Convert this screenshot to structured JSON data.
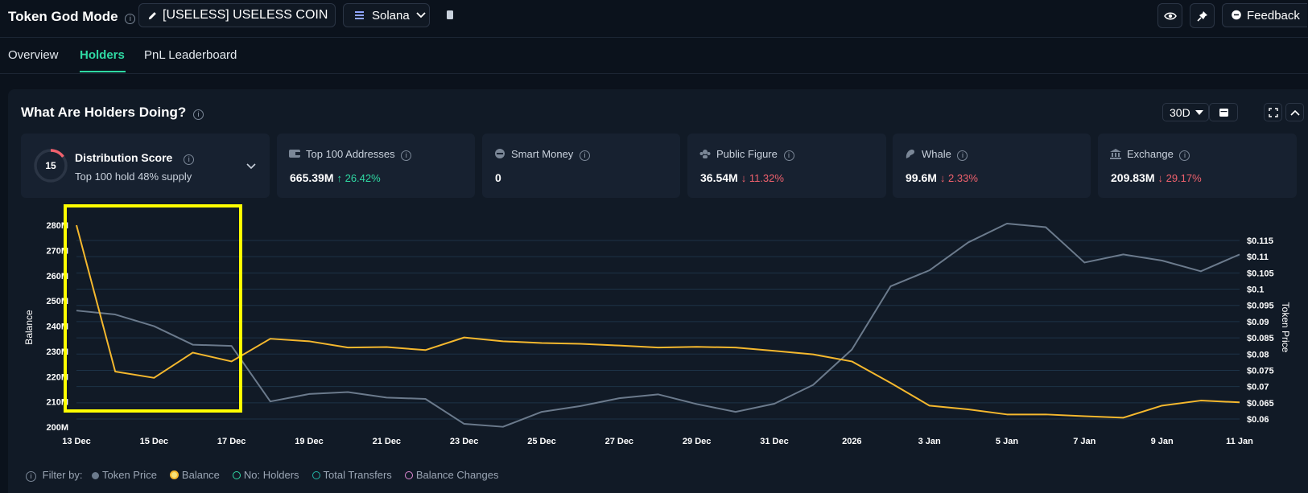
{
  "header": {
    "title": "Token God Mode",
    "token_name": "[USELESS] USELESS COIN",
    "chain": "Solana",
    "feedback_label": "Feedback"
  },
  "tabs": [
    {
      "label": "Overview"
    },
    {
      "label": "Holders"
    },
    {
      "label": "PnL Leaderboard"
    }
  ],
  "panel": {
    "title": "What Are Holders Doing?",
    "period": "30D"
  },
  "distribution": {
    "score": "15",
    "title": "Distribution Score",
    "subtitle": "Top 100 hold 48% supply",
    "score_fraction": 0.15
  },
  "cards": [
    {
      "label": "Top 100 Addresses",
      "value": "665.39M",
      "change": "↑ 26.42%",
      "direction": "up"
    },
    {
      "label": "Smart Money",
      "value": "0",
      "change": "",
      "direction": "none"
    },
    {
      "label": "Public Figure",
      "value": "36.54M",
      "change": "↓ 11.32%",
      "direction": "down"
    },
    {
      "label": "Whale",
      "value": "99.6M",
      "change": "↓ 2.33%",
      "direction": "down"
    },
    {
      "label": "Exchange",
      "value": "209.83M",
      "change": "↓ 29.17%",
      "direction": "down"
    }
  ],
  "filters": {
    "label": "Filter by:",
    "items": [
      {
        "label": "Token Price",
        "color": "#6b7a8c",
        "active": true
      },
      {
        "label": "Balance",
        "color": "#f5b82e",
        "active": true
      },
      {
        "label": "No: Holders",
        "color": "#2fd9a3",
        "active": false
      },
      {
        "label": "Total Transfers",
        "color": "#22b5a6",
        "active": false
      },
      {
        "label": "Balance Changes",
        "color": "#e38ad6",
        "active": false
      }
    ]
  },
  "chart_data": {
    "type": "line",
    "ylabel": "Balance",
    "y2label": "Token Price",
    "ylim": [
      200,
      280
    ],
    "y2lim": [
      0.06,
      0.115
    ],
    "y_ticks": [
      "200M",
      "210M",
      "220M",
      "230M",
      "240M",
      "250M",
      "260M",
      "270M",
      "280M"
    ],
    "y2_ticks": [
      "$0.06",
      "$0.065",
      "$0.07",
      "$0.075",
      "$0.08",
      "$0.085",
      "$0.09",
      "$0.095",
      "$0.1",
      "$0.105",
      "$0.11",
      "$0.115"
    ],
    "x_ticks": [
      "13 Dec",
      "15 Dec",
      "17 Dec",
      "19 Dec",
      "21 Dec",
      "23 Dec",
      "25 Dec",
      "27 Dec",
      "29 Dec",
      "31 Dec",
      "2026",
      "3 Jan",
      "5 Jan",
      "7 Jan",
      "9 Jan",
      "11 Jan"
    ],
    "series": [
      {
        "name": "Balance",
        "color": "#f5b82e",
        "axis": "left",
        "values": [
          280,
          222,
          219.5,
          229.5,
          226,
          235,
          234,
          231.5,
          231.7,
          230.5,
          235.5,
          234,
          233.3,
          233,
          232.3,
          231.5,
          231.8,
          231.5,
          230.2,
          228.8,
          226,
          217.5,
          208.5,
          207,
          205,
          205,
          204.3,
          203.7,
          208.5,
          210.5,
          209.8
        ]
      },
      {
        "name": "Token Price",
        "color": "#6b7a8c",
        "axis": "right",
        "values": [
          0.0934,
          0.0922,
          0.0886,
          0.0829,
          0.0825,
          0.0654,
          0.0677,
          0.0683,
          0.0666,
          0.0662,
          0.0585,
          0.0576,
          0.0622,
          0.064,
          0.0664,
          0.0676,
          0.0646,
          0.0622,
          0.0647,
          0.0705,
          0.0814,
          0.1009,
          0.1058,
          0.1144,
          0.1202,
          0.1191,
          0.1082,
          0.1107,
          0.1088,
          0.1055,
          0.1107
        ]
      }
    ]
  }
}
